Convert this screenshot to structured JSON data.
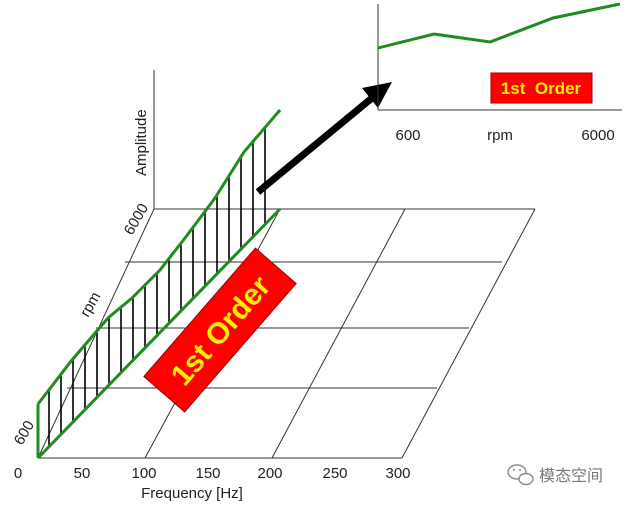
{
  "waterfall": {
    "x_axis_label": "Frequency [Hz]",
    "x_ticks": [
      "0",
      "50",
      "100",
      "150",
      "200",
      "250",
      "300"
    ],
    "rpm_label": "rpm",
    "rpm_ticks": [
      "600",
      "6000"
    ],
    "amplitude_label": "Amplitude",
    "order_label": "1st Order"
  },
  "order_plot": {
    "label": "1st  Order",
    "x_label": "rpm",
    "x_ticks": [
      "600",
      "6000"
    ],
    "line_color": "#1e8c1e"
  },
  "colors": {
    "order_box": "#ff0000",
    "order_text": "#ffee00",
    "slice_line": "#1e8c1e",
    "grid": "#333333"
  },
  "watermark": {
    "text": "模态空间",
    "icon": "wechat-icon"
  }
}
